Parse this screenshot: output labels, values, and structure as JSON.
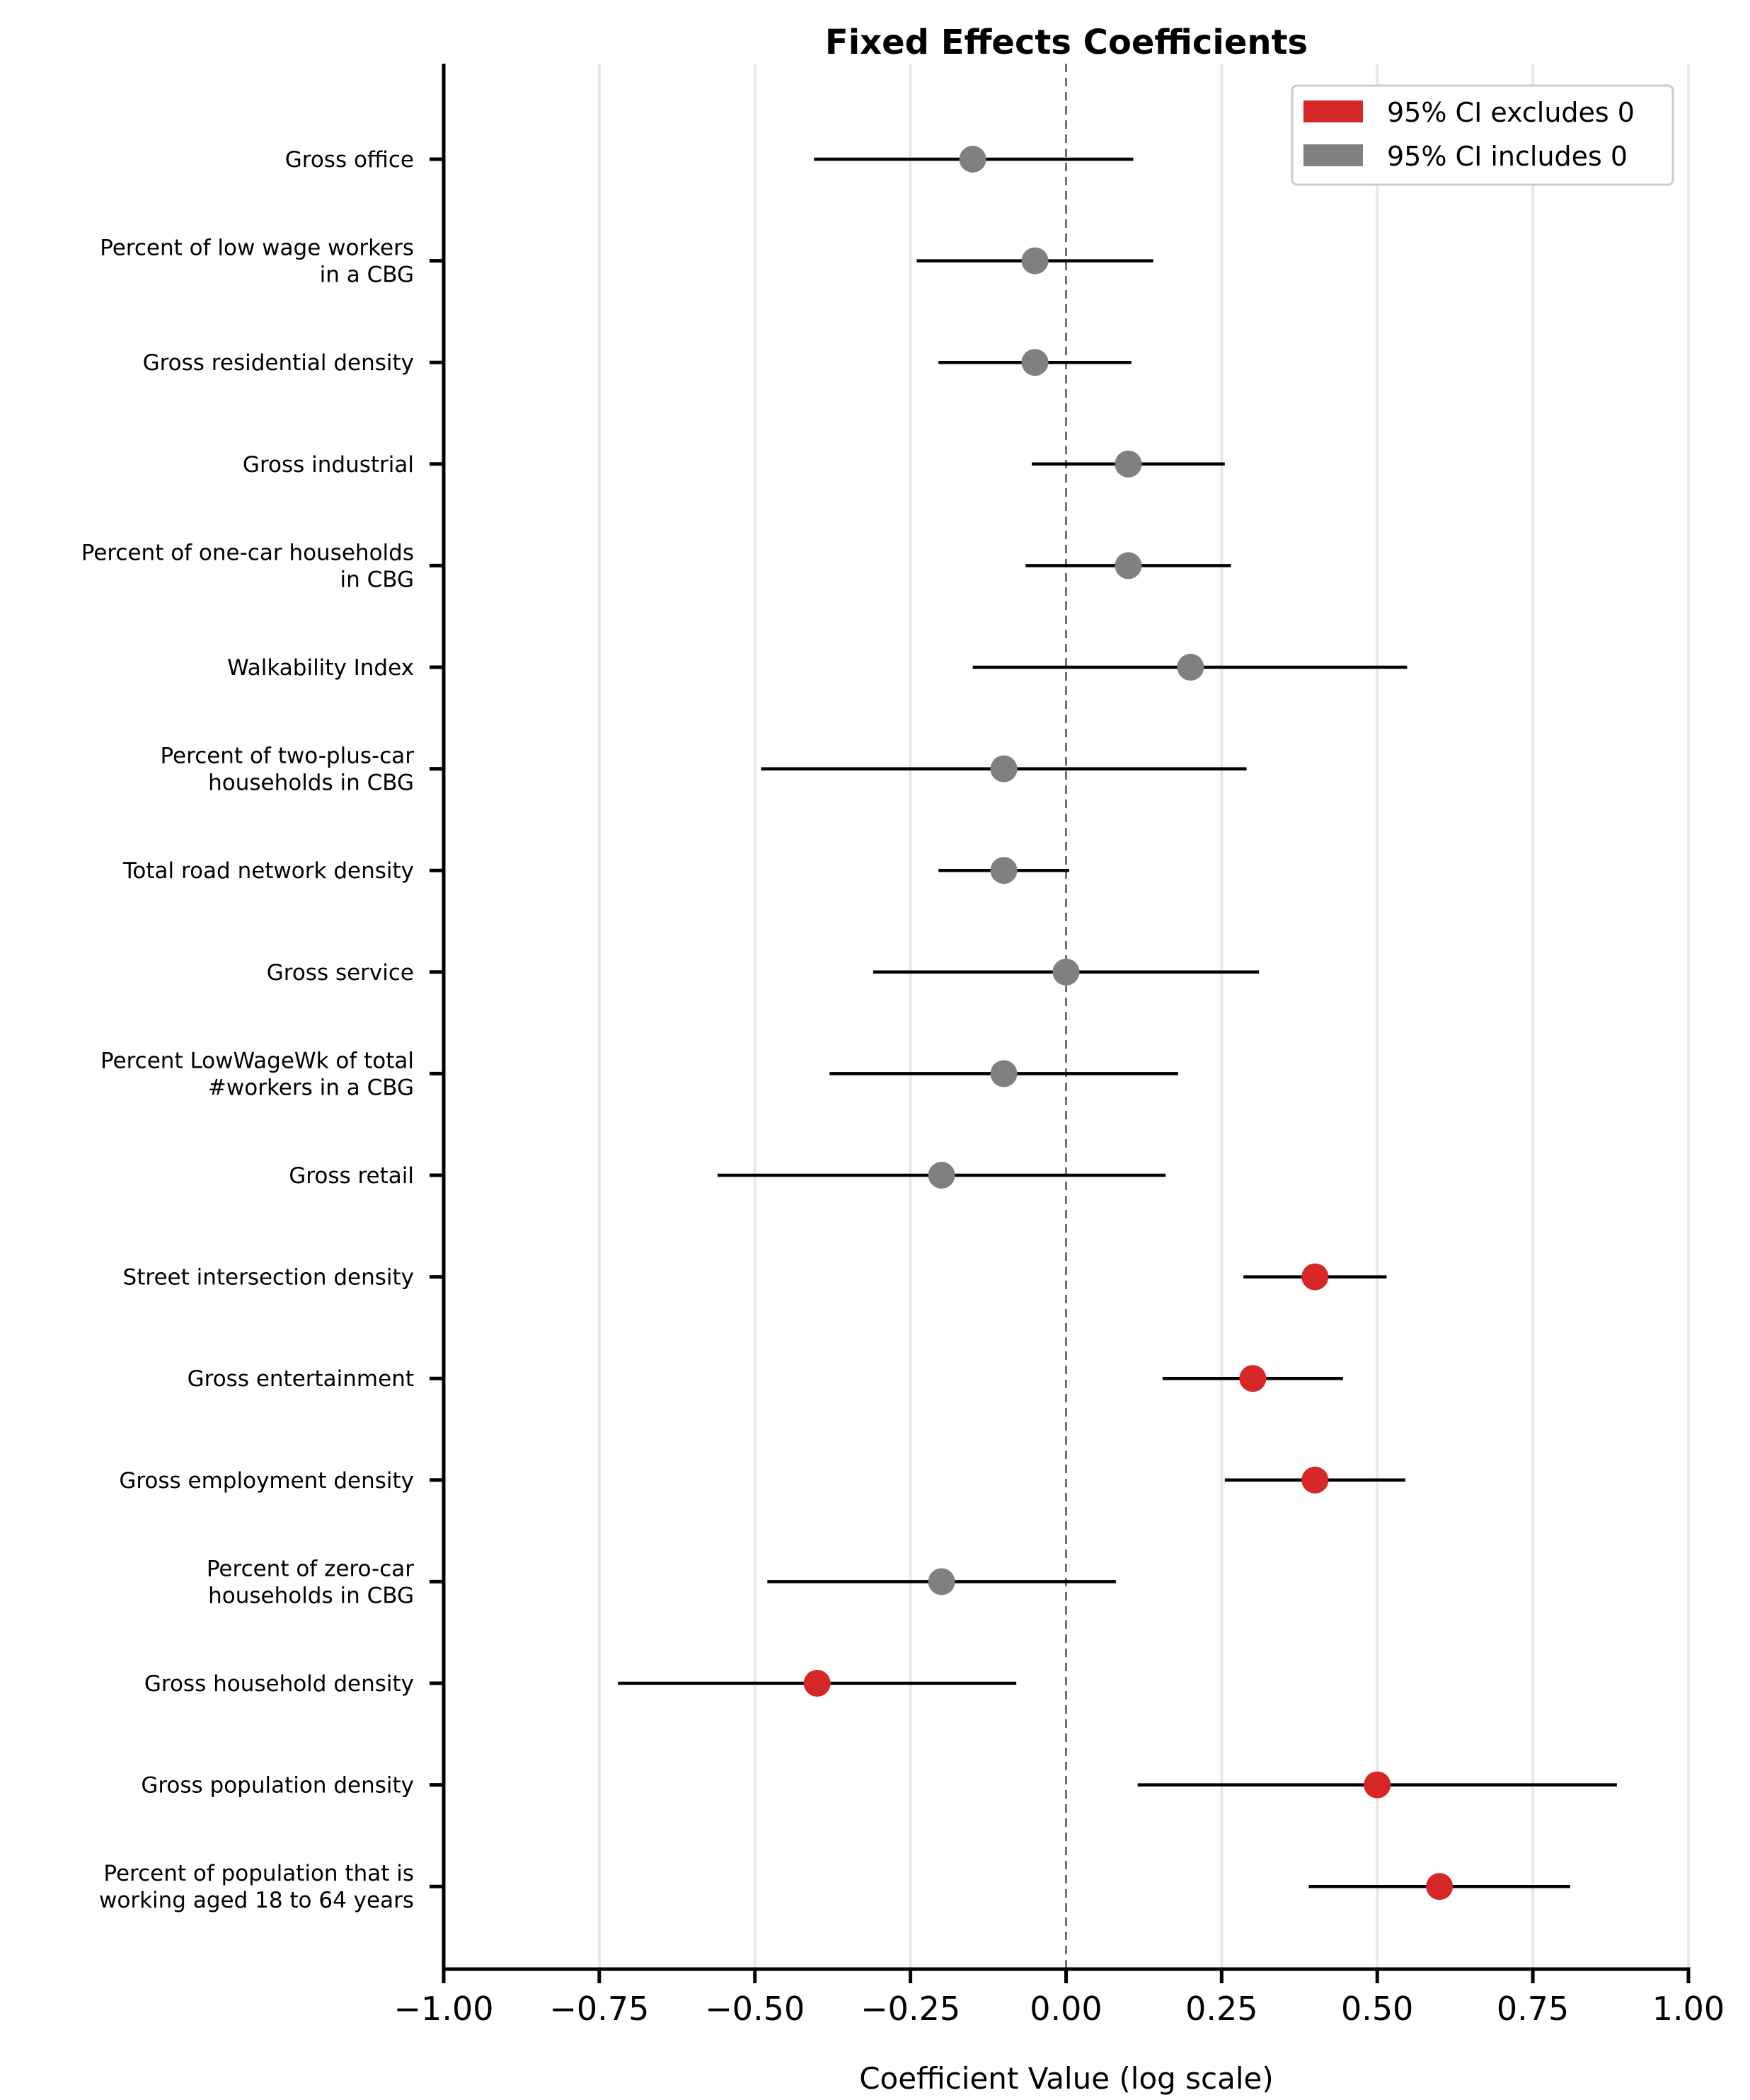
{
  "chart_data": {
    "type": "forest",
    "title": "Fixed Effects Coefficients",
    "xlabel": "Coefficient Value (log scale)",
    "xlim": [
      -1.0,
      1.0
    ],
    "xticks": [
      -1.0,
      -0.75,
      -0.5,
      -0.25,
      0.0,
      0.25,
      0.5,
      0.75,
      1.0
    ],
    "xtick_labels": [
      "−1.00",
      "−0.75",
      "−0.50",
      "−0.25",
      "0.00",
      "0.25",
      "0.50",
      "0.75",
      "1.00"
    ],
    "reference_line": 0.0,
    "grid": "vertical",
    "legend": {
      "position": "top-right",
      "items": [
        {
          "label": "95% CI excludes 0",
          "color": "#d62728"
        },
        {
          "label": "95% CI includes 0",
          "color": "#808080"
        }
      ]
    },
    "colors": {
      "significant": "#d62728",
      "not_significant": "#808080",
      "ci_line": "#000000"
    },
    "rows": [
      {
        "label": [
          "Gross office"
        ],
        "estimate": -0.15,
        "ci_low": -0.405,
        "ci_high": 0.108,
        "significant": false
      },
      {
        "label": [
          "Percent of low wage workers",
          "in a CBG"
        ],
        "estimate": -0.05,
        "ci_low": -0.24,
        "ci_high": 0.14,
        "significant": false
      },
      {
        "label": [
          "Gross residential density"
        ],
        "estimate": -0.05,
        "ci_low": -0.205,
        "ci_high": 0.105,
        "significant": false
      },
      {
        "label": [
          "Gross industrial"
        ],
        "estimate": 0.1,
        "ci_low": -0.055,
        "ci_high": 0.255,
        "significant": false
      },
      {
        "label": [
          "Percent of one-car households",
          "in CBG"
        ],
        "estimate": 0.1,
        "ci_low": -0.065,
        "ci_high": 0.265,
        "significant": false
      },
      {
        "label": [
          "Walkability Index"
        ],
        "estimate": 0.2,
        "ci_low": -0.15,
        "ci_high": 0.548,
        "significant": false
      },
      {
        "label": [
          "Percent of two-plus-car",
          "households in CBG"
        ],
        "estimate": -0.1,
        "ci_low": -0.49,
        "ci_high": 0.29,
        "significant": false
      },
      {
        "label": [
          "Total road network density"
        ],
        "estimate": -0.1,
        "ci_low": -0.205,
        "ci_high": 0.005,
        "significant": false
      },
      {
        "label": [
          "Gross service"
        ],
        "estimate": 0.0,
        "ci_low": -0.31,
        "ci_high": 0.31,
        "significant": false
      },
      {
        "label": [
          "Percent LowWageWk of total",
          "#workers in a CBG"
        ],
        "estimate": -0.1,
        "ci_low": -0.38,
        "ci_high": 0.18,
        "significant": false
      },
      {
        "label": [
          "Gross retail"
        ],
        "estimate": -0.2,
        "ci_low": -0.56,
        "ci_high": 0.16,
        "significant": false
      },
      {
        "label": [
          "Street intersection density"
        ],
        "estimate": 0.4,
        "ci_low": 0.285,
        "ci_high": 0.515,
        "significant": true
      },
      {
        "label": [
          "Gross entertainment"
        ],
        "estimate": 0.3,
        "ci_low": 0.155,
        "ci_high": 0.445,
        "significant": true
      },
      {
        "label": [
          "Gross employment density"
        ],
        "estimate": 0.4,
        "ci_low": 0.255,
        "ci_high": 0.545,
        "significant": true
      },
      {
        "label": [
          "Percent of zero-car",
          "households in CBG"
        ],
        "estimate": -0.2,
        "ci_low": -0.48,
        "ci_high": 0.08,
        "significant": false
      },
      {
        "label": [
          "Gross household density"
        ],
        "estimate": -0.4,
        "ci_low": -0.72,
        "ci_high": -0.08,
        "significant": true
      },
      {
        "label": [
          "Gross population density"
        ],
        "estimate": 0.5,
        "ci_low": 0.115,
        "ci_high": 0.885,
        "significant": true
      },
      {
        "label": [
          "Percent of population that is",
          "working aged 18 to 64 years"
        ],
        "estimate": 0.6,
        "ci_low": 0.39,
        "ci_high": 0.81,
        "significant": true
      }
    ]
  }
}
